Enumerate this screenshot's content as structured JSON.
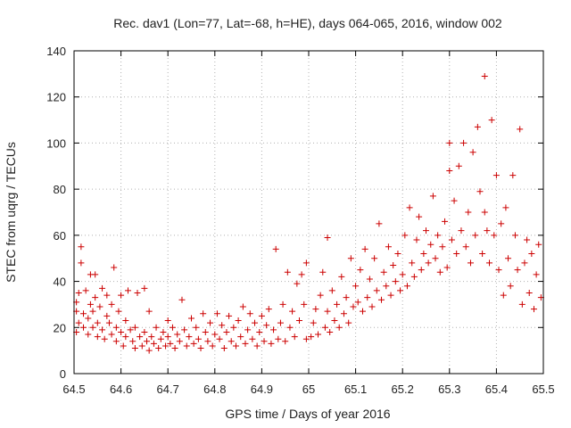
{
  "chart_data": {
    "type": "scatter",
    "title": "Rec. dav1 (Lon=77, Lat=-68, h=HE), days 064-065, 2016, window 002",
    "xlabel": "GPS time / Days of year 2016",
    "ylabel": "STEC from uqrg / TECUs",
    "xlim": [
      64.5,
      65.5
    ],
    "ylim": [
      0,
      140
    ],
    "xticks": [
      64.5,
      64.6,
      64.7,
      64.8,
      64.9,
      65,
      65.1,
      65.2,
      65.3,
      65.4,
      65.5
    ],
    "xtick_labels": [
      "64.5",
      "64.6",
      "64.7",
      "64.8",
      "64.9",
      "65",
      "65.1",
      "65.2",
      "65.3",
      "65.4",
      "65.5"
    ],
    "yticks": [
      0,
      20,
      40,
      60,
      80,
      100,
      120,
      140
    ],
    "ytick_labels": [
      "0",
      "20",
      "40",
      "60",
      "80",
      "100",
      "120",
      "140"
    ],
    "grid": true,
    "marker": "+",
    "color": "#cc0000",
    "series": [
      {
        "points": [
          [
            64.505,
            18
          ],
          [
            64.505,
            27
          ],
          [
            64.505,
            31
          ],
          [
            64.51,
            35
          ],
          [
            64.51,
            22
          ],
          [
            64.515,
            48
          ],
          [
            64.515,
            55
          ],
          [
            64.52,
            20
          ],
          [
            64.52,
            26
          ],
          [
            64.525,
            36
          ],
          [
            64.53,
            24
          ],
          [
            64.53,
            17
          ],
          [
            64.535,
            43
          ],
          [
            64.535,
            30
          ],
          [
            64.54,
            20
          ],
          [
            64.54,
            27
          ],
          [
            64.545,
            33
          ],
          [
            64.545,
            43
          ],
          [
            64.55,
            16
          ],
          [
            64.55,
            22
          ],
          [
            64.555,
            29
          ],
          [
            64.56,
            37
          ],
          [
            64.56,
            19
          ],
          [
            64.565,
            15
          ],
          [
            64.57,
            25
          ],
          [
            64.57,
            34
          ],
          [
            64.575,
            22
          ],
          [
            64.58,
            17
          ],
          [
            64.58,
            30
          ],
          [
            64.585,
            46
          ],
          [
            64.59,
            20
          ],
          [
            64.59,
            14
          ],
          [
            64.595,
            27
          ],
          [
            64.6,
            18
          ],
          [
            64.6,
            34
          ],
          [
            64.605,
            12
          ],
          [
            64.61,
            23
          ],
          [
            64.61,
            16
          ],
          [
            64.615,
            36
          ],
          [
            64.62,
            19
          ],
          [
            64.625,
            14
          ],
          [
            64.63,
            11
          ],
          [
            64.63,
            20
          ],
          [
            64.635,
            35
          ],
          [
            64.64,
            16
          ],
          [
            64.645,
            12
          ],
          [
            64.65,
            18
          ],
          [
            64.65,
            37
          ],
          [
            64.655,
            14
          ],
          [
            64.66,
            10
          ],
          [
            64.66,
            27
          ],
          [
            64.665,
            16
          ],
          [
            64.67,
            13
          ],
          [
            64.675,
            20
          ],
          [
            64.68,
            11
          ],
          [
            64.685,
            15
          ],
          [
            64.69,
            18
          ],
          [
            64.695,
            12
          ],
          [
            64.7,
            16
          ],
          [
            64.7,
            23
          ],
          [
            64.705,
            13
          ],
          [
            64.71,
            20
          ],
          [
            64.715,
            11
          ],
          [
            64.72,
            17
          ],
          [
            64.725,
            14
          ],
          [
            64.73,
            32
          ],
          [
            64.735,
            19
          ],
          [
            64.74,
            12
          ],
          [
            64.745,
            16
          ],
          [
            64.75,
            24
          ],
          [
            64.755,
            13
          ],
          [
            64.76,
            20
          ],
          [
            64.765,
            15
          ],
          [
            64.77,
            11
          ],
          [
            64.775,
            26
          ],
          [
            64.78,
            18
          ],
          [
            64.785,
            14
          ],
          [
            64.79,
            22
          ],
          [
            64.795,
            12
          ],
          [
            64.8,
            17
          ],
          [
            64.805,
            26
          ],
          [
            64.81,
            15
          ],
          [
            64.815,
            21
          ],
          [
            64.82,
            11
          ],
          [
            64.825,
            18
          ],
          [
            64.83,
            25
          ],
          [
            64.835,
            14
          ],
          [
            64.84,
            20
          ],
          [
            64.845,
            12
          ],
          [
            64.85,
            23
          ],
          [
            64.855,
            16
          ],
          [
            64.86,
            29
          ],
          [
            64.865,
            13
          ],
          [
            64.87,
            19
          ],
          [
            64.875,
            26
          ],
          [
            64.88,
            15
          ],
          [
            64.885,
            22
          ],
          [
            64.89,
            12
          ],
          [
            64.895,
            18
          ],
          [
            64.9,
            25
          ],
          [
            64.905,
            14
          ],
          [
            64.91,
            21
          ],
          [
            64.915,
            28
          ],
          [
            64.92,
            13
          ],
          [
            64.925,
            19
          ],
          [
            64.93,
            54
          ],
          [
            64.935,
            15
          ],
          [
            64.94,
            22
          ],
          [
            64.945,
            30
          ],
          [
            64.95,
            14
          ],
          [
            64.955,
            44
          ],
          [
            64.96,
            20
          ],
          [
            64.965,
            27
          ],
          [
            64.97,
            16
          ],
          [
            64.975,
            39
          ],
          [
            64.98,
            23
          ],
          [
            64.985,
            43
          ],
          [
            64.99,
            30
          ],
          [
            64.995,
            48
          ],
          [
            64.995,
            15
          ],
          [
            65.005,
            16
          ],
          [
            65.01,
            22
          ],
          [
            65.015,
            28
          ],
          [
            65.02,
            17
          ],
          [
            65.025,
            34
          ],
          [
            65.03,
            44
          ],
          [
            65.035,
            20
          ],
          [
            65.04,
            27
          ],
          [
            65.04,
            59
          ],
          [
            65.045,
            18
          ],
          [
            65.05,
            36
          ],
          [
            65.055,
            23
          ],
          [
            65.06,
            30
          ],
          [
            65.065,
            20
          ],
          [
            65.07,
            42
          ],
          [
            65.075,
            26
          ],
          [
            65.08,
            33
          ],
          [
            65.085,
            22
          ],
          [
            65.09,
            50
          ],
          [
            65.095,
            29
          ],
          [
            65.1,
            38
          ],
          [
            65.105,
            31
          ],
          [
            65.11,
            45
          ],
          [
            65.115,
            27
          ],
          [
            65.12,
            54
          ],
          [
            65.125,
            33
          ],
          [
            65.13,
            41
          ],
          [
            65.135,
            29
          ],
          [
            65.14,
            50
          ],
          [
            65.145,
            36
          ],
          [
            65.15,
            65
          ],
          [
            65.155,
            32
          ],
          [
            65.16,
            44
          ],
          [
            65.165,
            38
          ],
          [
            65.17,
            55
          ],
          [
            65.175,
            34
          ],
          [
            65.18,
            47
          ],
          [
            65.185,
            40
          ],
          [
            65.19,
            52
          ],
          [
            65.195,
            36
          ],
          [
            65.2,
            43
          ],
          [
            65.205,
            60
          ],
          [
            65.21,
            38
          ],
          [
            65.215,
            72
          ],
          [
            65.22,
            48
          ],
          [
            65.225,
            42
          ],
          [
            65.23,
            58
          ],
          [
            65.235,
            68
          ],
          [
            65.24,
            45
          ],
          [
            65.245,
            52
          ],
          [
            65.25,
            62
          ],
          [
            65.255,
            48
          ],
          [
            65.26,
            56
          ],
          [
            65.265,
            77
          ],
          [
            65.27,
            50
          ],
          [
            65.275,
            60
          ],
          [
            65.28,
            44
          ],
          [
            65.285,
            55
          ],
          [
            65.29,
            66
          ],
          [
            65.295,
            46
          ],
          [
            65.3,
            100
          ],
          [
            65.3,
            88
          ],
          [
            65.305,
            58
          ],
          [
            65.31,
            75
          ],
          [
            65.315,
            52
          ],
          [
            65.32,
            90
          ],
          [
            65.325,
            62
          ],
          [
            65.33,
            100
          ],
          [
            65.335,
            55
          ],
          [
            65.34,
            70
          ],
          [
            65.345,
            48
          ],
          [
            65.35,
            96
          ],
          [
            65.355,
            60
          ],
          [
            65.36,
            107
          ],
          [
            65.365,
            79
          ],
          [
            65.37,
            52
          ],
          [
            65.375,
            129
          ],
          [
            65.375,
            70
          ],
          [
            65.38,
            62
          ],
          [
            65.385,
            48
          ],
          [
            65.39,
            110
          ],
          [
            65.395,
            60
          ],
          [
            65.4,
            86
          ],
          [
            65.405,
            45
          ],
          [
            65.41,
            65
          ],
          [
            65.415,
            34
          ],
          [
            65.42,
            72
          ],
          [
            65.425,
            50
          ],
          [
            65.43,
            38
          ],
          [
            65.435,
            86
          ],
          [
            65.44,
            60
          ],
          [
            65.445,
            45
          ],
          [
            65.45,
            106
          ],
          [
            65.455,
            30
          ],
          [
            65.46,
            48
          ],
          [
            65.465,
            58
          ],
          [
            65.47,
            35
          ],
          [
            65.475,
            52
          ],
          [
            65.48,
            28
          ],
          [
            65.485,
            43
          ],
          [
            65.49,
            56
          ],
          [
            65.495,
            33
          ]
        ]
      }
    ]
  }
}
